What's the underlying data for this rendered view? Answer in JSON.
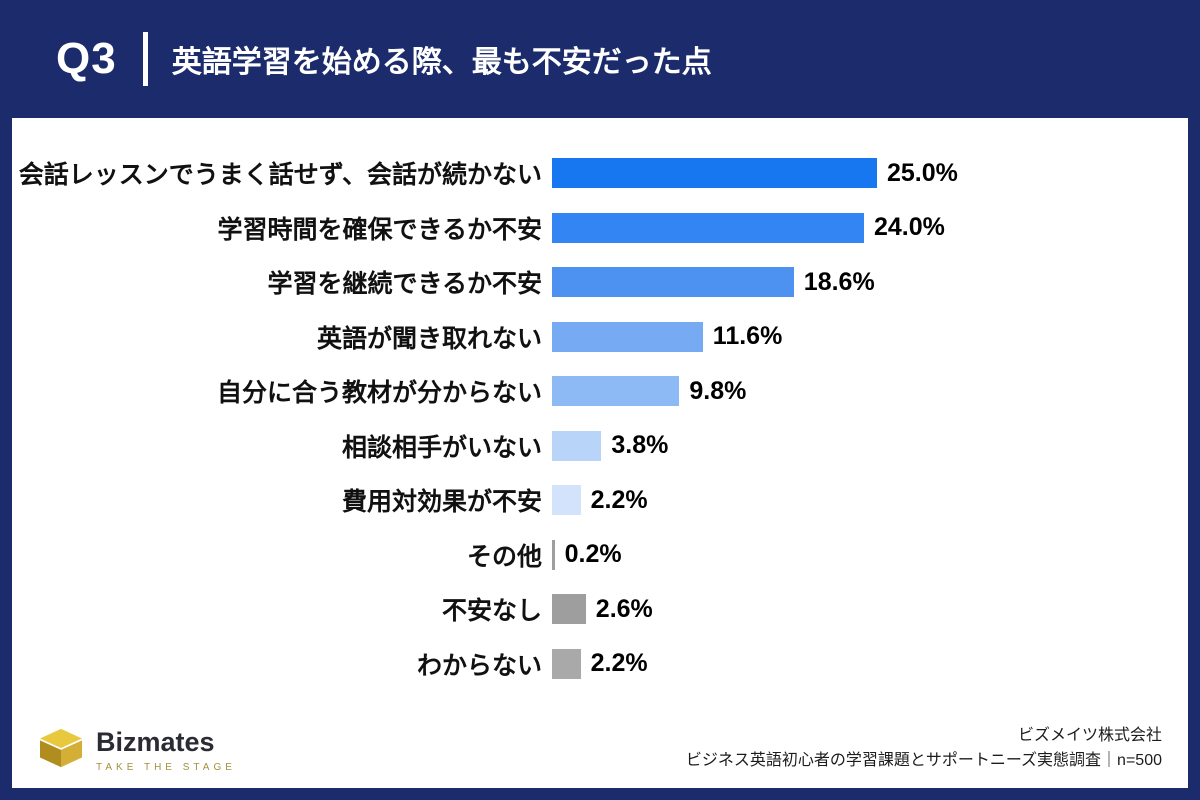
{
  "header": {
    "question_label": "Q3",
    "title": "英語学習を始める際、最も不安だった点"
  },
  "chart_data": {
    "type": "bar",
    "orientation": "horizontal",
    "unit": "%",
    "title": "英語学習を始める際、最も不安だった点",
    "xlim": [
      0,
      26
    ],
    "grid": false,
    "legend": "none",
    "categories": [
      "会話レッスンでうまく話せず、会話が続かない",
      "学習時間を確保できるか不安",
      "学習を継続できるか不安",
      "英語が聞き取れない",
      "自分に合う教材が分からない",
      "相談相手がいない",
      "費用対効果が不安",
      "その他",
      "不安なし",
      "わからない"
    ],
    "values": [
      25.0,
      24.0,
      18.6,
      11.6,
      9.8,
      3.8,
      2.2,
      0.2,
      2.6,
      2.2
    ],
    "value_labels": [
      "25.0%",
      "24.0%",
      "18.6%",
      "11.6%",
      "9.8%",
      "3.8%",
      "2.2%",
      "0.2%",
      "2.6%",
      "2.2%"
    ],
    "bar_colors": [
      "#1677f0",
      "#3285f2",
      "#4d92f0",
      "#76aaf2",
      "#8db9f4",
      "#b9d4f9",
      "#d3e3fb",
      "#9e9e9e",
      "#9e9e9e",
      "#a9a9a9"
    ]
  },
  "footer": {
    "logo_text": "Bizmates",
    "logo_tagline": "TAKE THE STAGE",
    "credit_line1": "ビズメイツ株式会社",
    "credit_line2": "ビジネス英語初心者の学習課題とサポートニーズ実態調査｜n=500"
  },
  "colors": {
    "navy": "#1b2b6b",
    "accent_blue": "#1677f0",
    "gray_bar": "#9e9e9e",
    "logo_gold": "#d4af37"
  }
}
